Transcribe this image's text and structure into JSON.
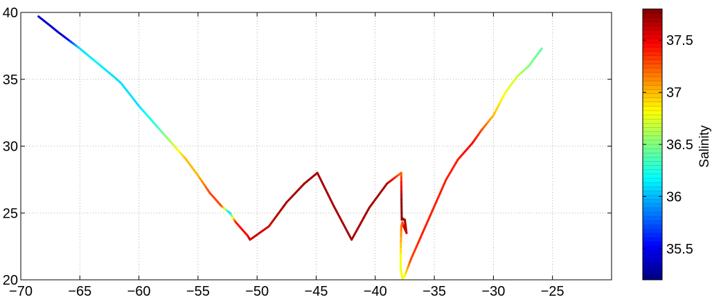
{
  "chart_data": {
    "type": "line",
    "title": "",
    "xlabel": "",
    "ylabel": "",
    "xlim": [
      -70,
      -20
    ],
    "ylim": [
      20,
      40
    ],
    "xticks": [
      -70,
      -65,
      -60,
      -55,
      -50,
      -45,
      -40,
      -35,
      -30,
      -25
    ],
    "yticks": [
      20,
      25,
      30,
      35,
      40
    ],
    "grid": true,
    "grid_style": "dotted",
    "colormap": "jet",
    "colorbar": {
      "label": "Salinity",
      "range": [
        35.2,
        37.8
      ],
      "ticks": [
        35.5,
        36,
        36.5,
        37,
        37.5
      ]
    },
    "series": [
      {
        "x": [
          -68.5,
          -67.5,
          -66.8,
          -66.2,
          -65.0,
          -63.5,
          -62.0,
          -61.5,
          -60.0,
          -58.5,
          -57.0,
          -56.0,
          -55.0,
          -54.0,
          -53.0,
          -52.3,
          -51.8,
          -51.3,
          -50.8,
          -50.6,
          -49.0,
          -47.5,
          -46.0,
          -44.9,
          -43.5,
          -42.0,
          -40.5,
          -39.0,
          -37.8,
          -37.78,
          -37.76,
          -37.7,
          -37.6,
          -37.5,
          -37.35,
          -37.6,
          -37.7,
          -37.8,
          -37.85,
          -37.85,
          -37.7,
          -37.5,
          -37.0,
          -36.0,
          -35.0,
          -34.0,
          -33.0,
          -31.8,
          -31.0,
          -30.0,
          -29.0,
          -28.0,
          -27.0,
          -25.9
        ],
        "y": [
          39.7,
          39.0,
          38.5,
          38.1,
          37.3,
          36.2,
          35.1,
          34.7,
          33.0,
          31.5,
          30.0,
          29.0,
          27.8,
          26.5,
          25.5,
          25.0,
          24.3,
          23.8,
          23.3,
          23.0,
          24.0,
          25.8,
          27.2,
          28.0,
          25.5,
          23.0,
          25.4,
          27.2,
          28.0,
          26.0,
          24.5,
          24.6,
          24.5,
          24.5,
          23.5,
          24.0,
          24.3,
          24.0,
          21.5,
          20.8,
          20.1,
          20.3,
          21.5,
          23.5,
          25.5,
          27.5,
          29.0,
          30.2,
          31.2,
          32.3,
          34.0,
          35.2,
          36.0,
          37.3
        ],
        "salinity": [
          35.4,
          35.4,
          35.4,
          35.4,
          36.1,
          36.15,
          36.1,
          36.1,
          36.1,
          36.3,
          36.7,
          37.0,
          37.0,
          37.3,
          37.3,
          36.0,
          37.4,
          37.45,
          37.5,
          37.6,
          37.6,
          37.7,
          37.7,
          37.7,
          37.7,
          37.7,
          37.7,
          37.7,
          37.2,
          37.75,
          37.75,
          37.75,
          37.75,
          37.75,
          37.6,
          37.6,
          37.3,
          37.2,
          36.8,
          36.8,
          36.8,
          36.8,
          37.3,
          37.4,
          37.4,
          37.4,
          37.4,
          37.5,
          37.3,
          37.0,
          36.8,
          36.7,
          36.5,
          36.4
        ]
      }
    ]
  }
}
